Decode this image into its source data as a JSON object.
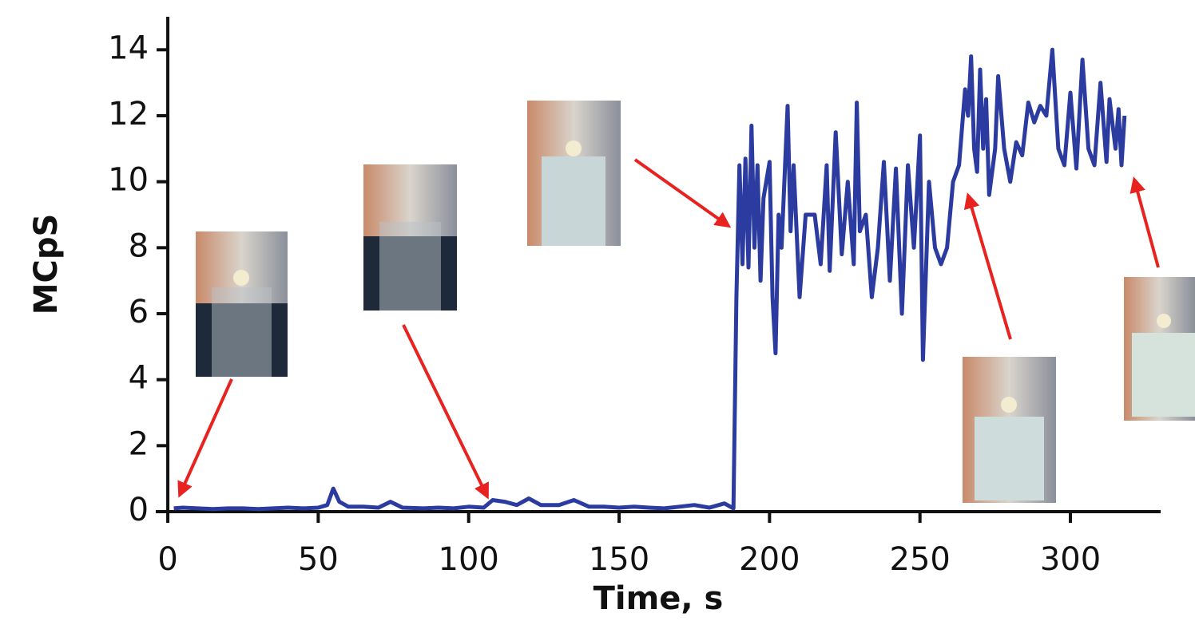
{
  "chart_data": {
    "type": "line",
    "xlabel": "Time, s",
    "ylabel": "MCpS",
    "xlim": [
      -4,
      330
    ],
    "ylim": [
      0,
      15
    ],
    "xticks": [
      0,
      50,
      100,
      150,
      200,
      250,
      300
    ],
    "yticks": [
      0,
      2,
      4,
      6,
      8,
      10,
      12,
      14
    ],
    "series": [
      {
        "color": "#2b3b9f",
        "x": [
          2,
          5,
          10,
          15,
          20,
          25,
          30,
          35,
          40,
          45,
          50,
          53,
          55,
          57,
          60,
          65,
          70,
          74,
          78,
          85,
          90,
          95,
          100,
          105,
          108,
          112,
          116,
          120,
          124,
          130,
          135,
          140,
          145,
          150,
          155,
          160,
          165,
          170,
          175,
          180,
          185,
          188,
          189,
          190,
          191,
          192,
          193,
          194,
          195,
          196,
          197,
          198,
          200,
          201,
          202,
          203,
          204,
          206,
          207,
          208,
          210,
          212,
          215,
          217,
          219,
          220,
          222,
          224,
          226,
          228,
          229,
          230,
          232,
          234,
          236,
          238,
          240,
          242,
          244,
          246,
          248,
          250,
          251,
          253,
          255,
          257,
          259,
          261,
          263,
          265,
          266,
          267,
          268,
          269,
          270,
          271,
          272,
          273,
          275,
          276,
          278,
          280,
          282,
          284,
          286,
          288,
          290,
          292,
          294,
          296,
          298,
          300,
          302,
          304,
          306,
          308,
          310,
          312,
          313,
          315,
          316,
          317,
          318
        ],
        "values": [
          0.1,
          0.12,
          0.1,
          0.08,
          0.1,
          0.1,
          0.08,
          0.1,
          0.12,
          0.1,
          0.12,
          0.2,
          0.7,
          0.3,
          0.15,
          0.15,
          0.12,
          0.3,
          0.12,
          0.1,
          0.12,
          0.1,
          0.15,
          0.12,
          0.35,
          0.3,
          0.2,
          0.4,
          0.2,
          0.2,
          0.35,
          0.15,
          0.15,
          0.12,
          0.15,
          0.12,
          0.1,
          0.15,
          0.2,
          0.12,
          0.25,
          0.1,
          6.5,
          10.5,
          7.5,
          10.7,
          7.4,
          11.7,
          8,
          10.5,
          7,
          9.5,
          10.6,
          6.5,
          4.8,
          9,
          8,
          12.3,
          8.5,
          10.5,
          6.5,
          9,
          9,
          7.5,
          10.5,
          7.3,
          11.5,
          7.8,
          10,
          7.5,
          12.4,
          8.5,
          9,
          6.5,
          8,
          10.6,
          7,
          10.4,
          6,
          10.5,
          8,
          11.4,
          4.6,
          10,
          8,
          7.5,
          8,
          10,
          10.5,
          12.8,
          12,
          13.8,
          11,
          10.3,
          13.4,
          11,
          12.5,
          9.6,
          11,
          13.2,
          11,
          10,
          11.2,
          10.8,
          12.4,
          11.8,
          12.3,
          12,
          14,
          11,
          10.5,
          12.7,
          10.4,
          13.7,
          11,
          10.5,
          13,
          10.6,
          12.5,
          11,
          12.2,
          10.5,
          12
        ]
      }
    ]
  }
}
